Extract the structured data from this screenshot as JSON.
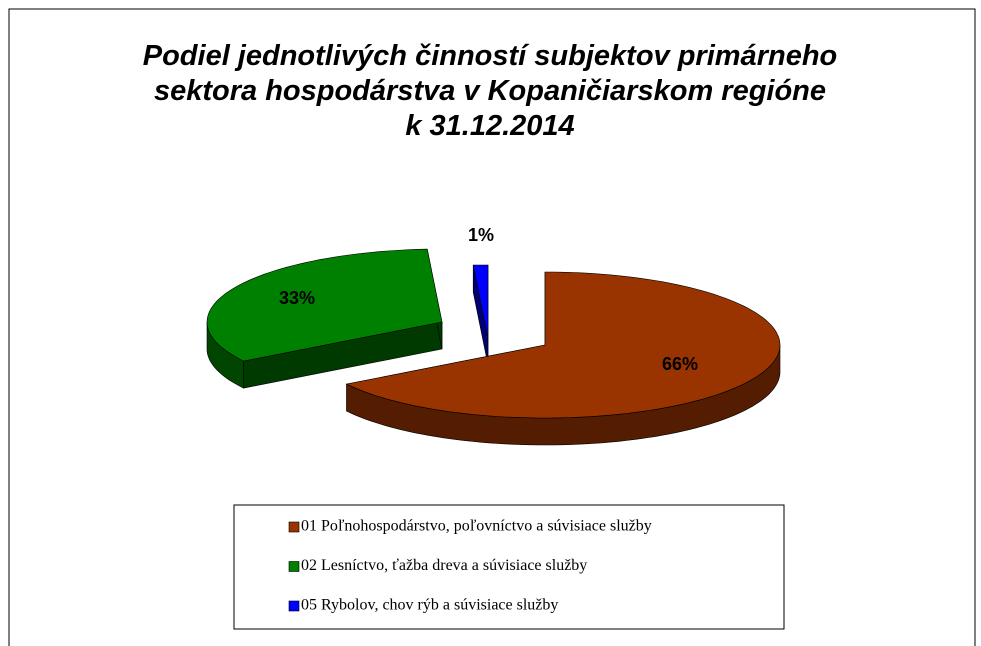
{
  "chart_data": {
    "type": "pie",
    "title": "Podiel jednotlivých činností subjektov primárneho sektora hospodárstva v Kopaničiarskom regióne k 31.12.2014",
    "categories": [
      "01 Poľnohospodárstvo, poľovníctvo a súvisiace služby",
      "02 Lesníctvo, ťažba dreva a súvisiace služby",
      "05 Rybolov, chov rýb a súvisiace služby"
    ],
    "values": [
      66,
      33,
      1
    ],
    "value_labels": [
      "66%",
      "33%",
      "1%"
    ],
    "colors": [
      "#993300",
      "#008000",
      "#0000ff"
    ],
    "legend": "bottom"
  }
}
